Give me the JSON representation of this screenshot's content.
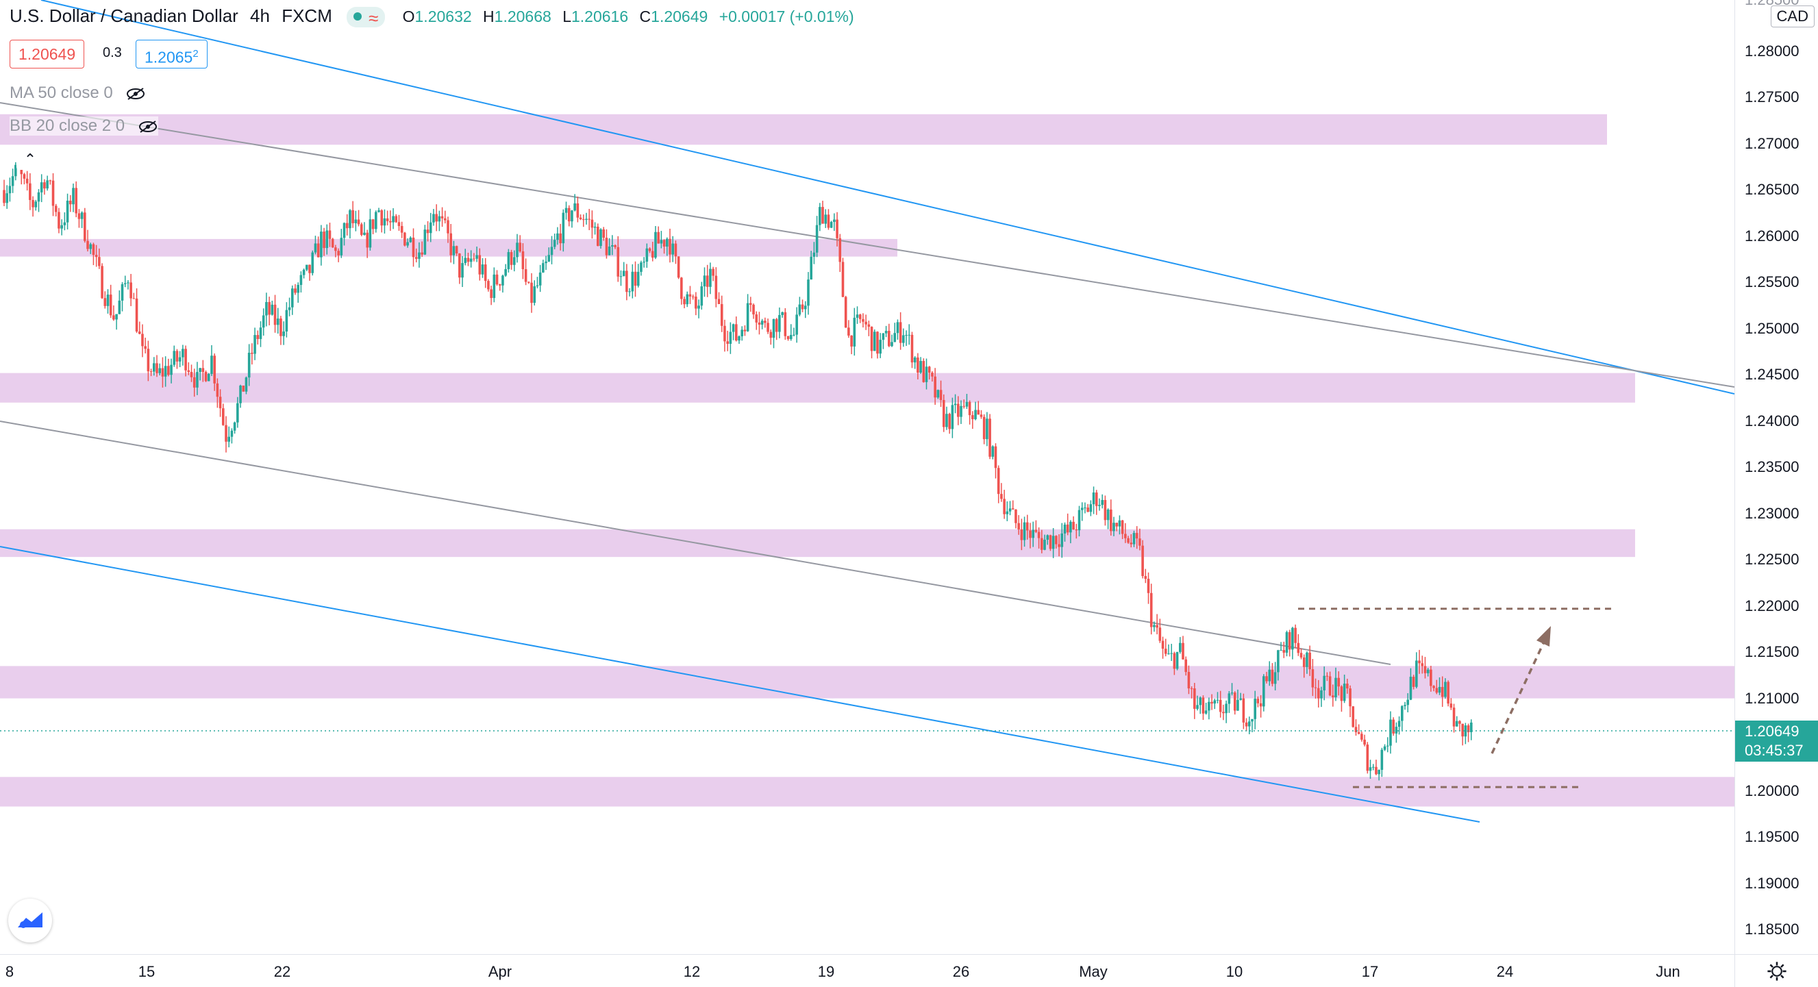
{
  "header": {
    "symbol": "U.S. Dollar / Canadian Dollar",
    "interval": "4h",
    "exchange": "FXCM",
    "open_label": "O",
    "open": "1.20632",
    "high_label": "H",
    "high": "1.20668",
    "low_label": "L",
    "low": "1.20616",
    "close_label": "C",
    "close": "1.20649",
    "change": "+0.00017 (+0.01%)"
  },
  "quote": {
    "bid": "1.20649",
    "spread": "0.3",
    "ask": "1.2065",
    "ask_super": "2"
  },
  "indicators": [
    {
      "label": "MA 50 close 0"
    },
    {
      "label": "BB 20 close 2 0"
    }
  ],
  "axis": {
    "currency": "CAD",
    "current_price": "1.20649",
    "countdown": "03:45:37",
    "price_ticks": [
      "1.28000",
      "1.27500",
      "1.27000",
      "1.26500",
      "1.26000",
      "1.25500",
      "1.25000",
      "1.24500",
      "1.24000",
      "1.23500",
      "1.23000",
      "1.22500",
      "1.22000",
      "1.21500",
      "1.21000",
      "1.20000",
      "1.19500",
      "1.19000",
      "1.18500"
    ],
    "top_partial_tick": "1.28500",
    "time_ticks": [
      "8",
      "15",
      "22",
      "Apr",
      "12",
      "19",
      "26",
      "May",
      "10",
      "17",
      "24",
      "Jun"
    ]
  },
  "colors": {
    "up": "#26a69a",
    "down": "#ef5350",
    "zone": "#e1bee7",
    "channel_blue": "#2196f3",
    "channel_gray": "#9598a1",
    "target": "#8d6e63"
  },
  "chart_data": {
    "type": "candlestick",
    "x_range": [
      "Mar 08",
      "Jun 03"
    ],
    "ylim": [
      1.1825,
      1.2863
    ],
    "zones": [
      [
        1.2699,
        1.2732
      ],
      [
        1.2578,
        1.2597
      ],
      [
        1.242,
        1.2452
      ],
      [
        1.2253,
        1.2283
      ],
      [
        1.21,
        1.2135
      ],
      [
        1.1983,
        1.2015
      ]
    ],
    "target_high": 1.2197,
    "target_low": 1.2004,
    "close_path": [
      1.265,
      1.2672,
      1.2632,
      1.2667,
      1.2612,
      1.264,
      1.26,
      1.255,
      1.251,
      1.256,
      1.247,
      1.2448,
      1.246,
      1.2472,
      1.244,
      1.2468,
      1.2384,
      1.242,
      1.248,
      1.252,
      1.25,
      1.254,
      1.256,
      1.26,
      1.258,
      1.262,
      1.259,
      1.263,
      1.261,
      1.26,
      1.2585,
      1.263,
      1.26,
      1.256,
      1.258,
      1.254,
      1.256,
      1.259,
      1.253,
      1.256,
      1.26,
      1.263,
      1.262,
      1.26,
      1.258,
      1.255,
      1.256,
      1.259,
      1.26,
      1.254,
      1.252,
      1.256,
      1.25,
      1.249,
      1.253,
      1.25,
      1.251,
      1.249,
      1.254,
      1.263,
      1.261,
      1.249,
      1.251,
      1.248,
      1.249,
      1.25,
      1.246,
      1.244,
      1.24,
      1.241,
      1.241,
      1.239,
      1.232,
      1.229,
      1.228,
      1.227,
      1.2275,
      1.228,
      1.23,
      1.232,
      1.229,
      1.2275,
      1.226,
      1.218,
      1.214,
      1.215,
      1.209,
      1.2085,
      1.209,
      1.2095,
      1.208,
      1.211,
      1.214,
      1.217,
      1.214,
      1.211,
      1.2115,
      1.21,
      1.205,
      1.202,
      1.206,
      1.209,
      1.213,
      1.212,
      1.211,
      1.2065,
      1.2065
    ]
  }
}
